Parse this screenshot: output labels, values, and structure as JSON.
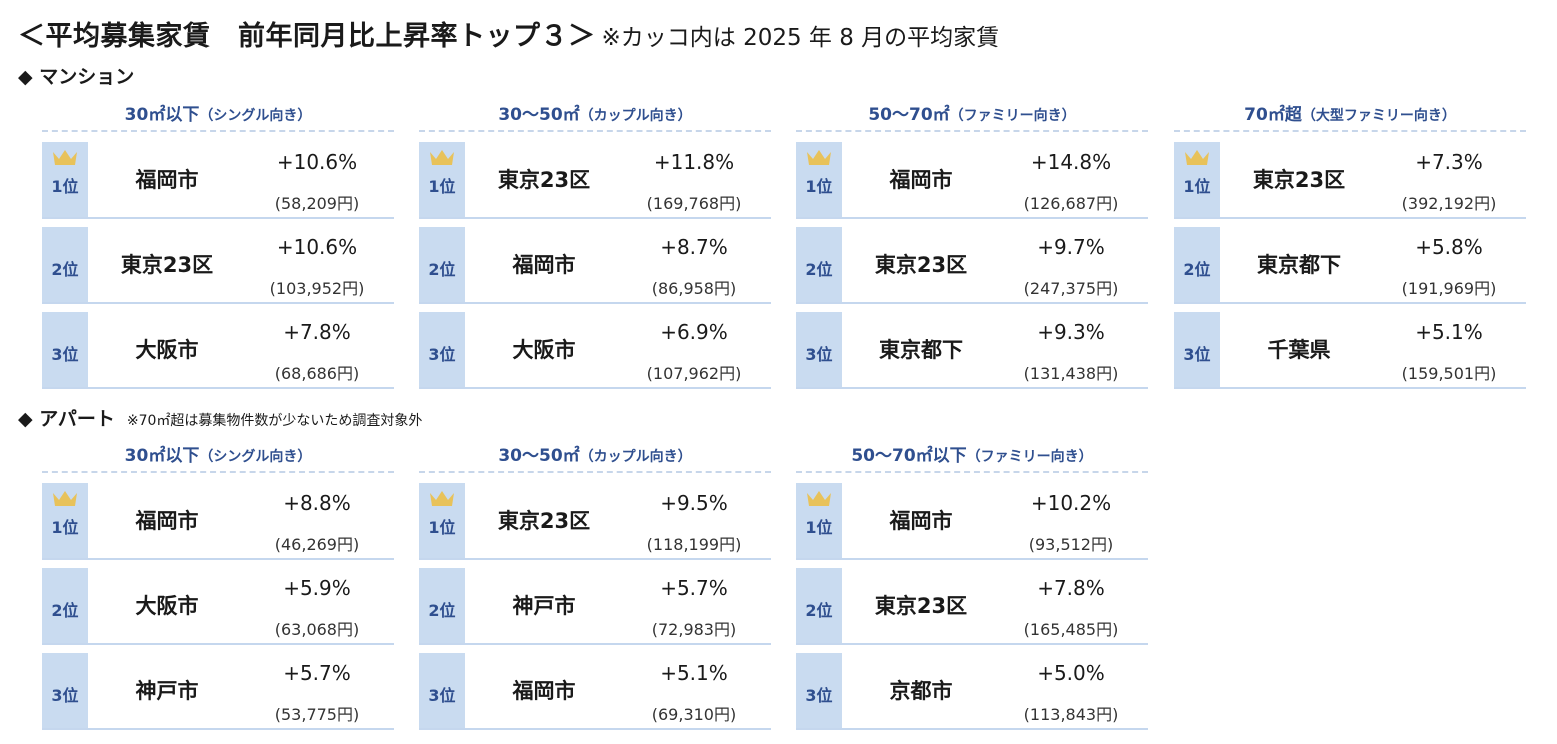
{
  "title": {
    "main": "＜平均募集家賃　前年同月比上昇率トップ３＞",
    "note": "※カッコ内は 2025 年 8 月の平均家賃"
  },
  "colors": {
    "accent": "#2f4f8f",
    "rank_bg": "#c9dbf0",
    "crown": "#e8c25a"
  },
  "mansion": {
    "label": "◆ マンション",
    "groups": [
      {
        "size": "30㎡以下",
        "target": "（シングル向き）",
        "rows": [
          {
            "rank": "1位",
            "city": "福岡市",
            "rate": "+10.6%",
            "rent": "(58,209円)"
          },
          {
            "rank": "2位",
            "city": "東京23区",
            "rate": "+10.6%",
            "rent": "(103,952円)"
          },
          {
            "rank": "3位",
            "city": "大阪市",
            "rate": "+7.8%",
            "rent": "(68,686円)"
          }
        ]
      },
      {
        "size": "30～50㎡",
        "target": "（カップル向き）",
        "rows": [
          {
            "rank": "1位",
            "city": "東京23区",
            "rate": "+11.8%",
            "rent": "(169,768円)"
          },
          {
            "rank": "2位",
            "city": "福岡市",
            "rate": "+8.7%",
            "rent": "(86,958円)"
          },
          {
            "rank": "3位",
            "city": "大阪市",
            "rate": "+6.9%",
            "rent": "(107,962円)"
          }
        ]
      },
      {
        "size": "50～70㎡",
        "target": "（ファミリー向き）",
        "rows": [
          {
            "rank": "1位",
            "city": "福岡市",
            "rate": "+14.8%",
            "rent": "(126,687円)"
          },
          {
            "rank": "2位",
            "city": "東京23区",
            "rate": "+9.7%",
            "rent": "(247,375円)"
          },
          {
            "rank": "3位",
            "city": "東京都下",
            "rate": "+9.3%",
            "rent": "(131,438円)"
          }
        ]
      },
      {
        "size": "70㎡超",
        "target": "（大型ファミリー向き）",
        "rows": [
          {
            "rank": "1位",
            "city": "東京23区",
            "rate": "+7.3%",
            "rent": "(392,192円)"
          },
          {
            "rank": "2位",
            "city": "東京都下",
            "rate": "+5.8%",
            "rent": "(191,969円)"
          },
          {
            "rank": "3位",
            "city": "千葉県",
            "rate": "+5.1%",
            "rent": "(159,501円)"
          }
        ]
      }
    ]
  },
  "apart": {
    "label": "◆ アパート",
    "note": "※70㎡超は募集物件数が少ないため調査対象外",
    "groups": [
      {
        "size": "30㎡以下",
        "target": "（シングル向き）",
        "rows": [
          {
            "rank": "1位",
            "city": "福岡市",
            "rate": "+8.8%",
            "rent": "(46,269円)"
          },
          {
            "rank": "2位",
            "city": "大阪市",
            "rate": "+5.9%",
            "rent": "(63,068円)"
          },
          {
            "rank": "3位",
            "city": "神戸市",
            "rate": "+5.7%",
            "rent": "(53,775円)"
          }
        ]
      },
      {
        "size": "30～50㎡",
        "target": "（カップル向き）",
        "rows": [
          {
            "rank": "1位",
            "city": "東京23区",
            "rate": "+9.5%",
            "rent": "(118,199円)"
          },
          {
            "rank": "2位",
            "city": "神戸市",
            "rate": "+5.7%",
            "rent": "(72,983円)"
          },
          {
            "rank": "3位",
            "city": "福岡市",
            "rate": "+5.1%",
            "rent": "(69,310円)"
          }
        ]
      },
      {
        "size": "50～70㎡以下",
        "target": "（ファミリー向き）",
        "rows": [
          {
            "rank": "1位",
            "city": "福岡市",
            "rate": "+10.2%",
            "rent": "(93,512円)"
          },
          {
            "rank": "2位",
            "city": "東京23区",
            "rate": "+7.8%",
            "rent": "(165,485円)"
          },
          {
            "rank": "3位",
            "city": "京都市",
            "rate": "+5.0%",
            "rent": "(113,843円)"
          }
        ]
      }
    ]
  }
}
